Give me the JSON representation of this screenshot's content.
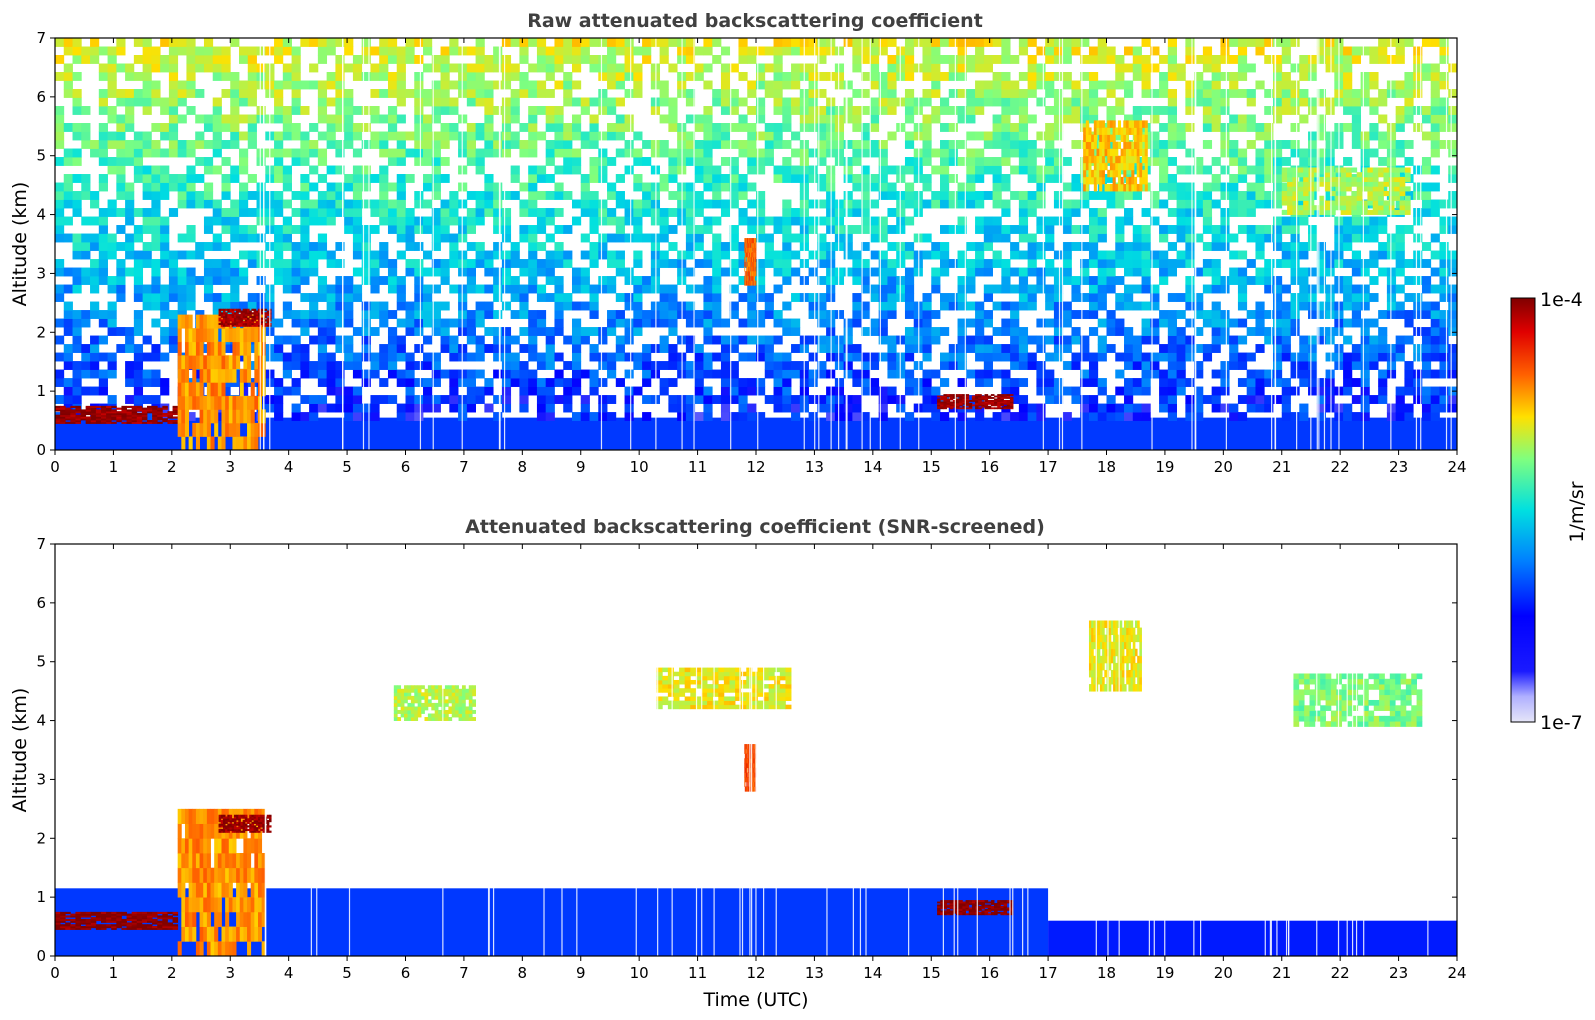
{
  "chart_data": [
    {
      "type": "heatmap",
      "title": "Raw attenuated backscattering coefficient",
      "xlabel": "",
      "ylabel": "Altitude (km)",
      "xlim": [
        0,
        24
      ],
      "ylim": [
        0,
        7
      ],
      "x_ticks": [
        "0",
        "1",
        "2",
        "3",
        "4",
        "5",
        "6",
        "7",
        "8",
        "9",
        "10",
        "11",
        "12",
        "13",
        "14",
        "15",
        "16",
        "17",
        "18",
        "19",
        "20",
        "21",
        "22",
        "23",
        "24"
      ],
      "y_ticks": [
        "0",
        "1",
        "2",
        "3",
        "4",
        "5",
        "6",
        "7"
      ],
      "features": [
        {
          "kind": "boundary_layer",
          "x_start": 0,
          "x_end": 24,
          "top_km": 0.55,
          "level": 0.18
        },
        {
          "kind": "noise",
          "x_start": 0,
          "x_end": 24,
          "alt_start_km": 0.5,
          "alt_end_km": 7,
          "level_low": 0.15,
          "level_high": 0.6
        },
        {
          "kind": "cloud",
          "x_start": 0.0,
          "x_end": 2.1,
          "alt_start_km": 0.45,
          "alt_end_km": 0.75,
          "level": 0.97
        },
        {
          "kind": "cloud",
          "x_start": 2.1,
          "x_end": 3.6,
          "alt_start_km": 0.0,
          "alt_end_km": 2.3,
          "level": 0.7
        },
        {
          "kind": "cloud",
          "x_start": 2.8,
          "x_end": 3.7,
          "alt_start_km": 2.1,
          "alt_end_km": 2.4,
          "level": 0.95
        },
        {
          "kind": "cloud",
          "x_start": 15.1,
          "x_end": 16.4,
          "alt_start_km": 0.7,
          "alt_end_km": 0.95,
          "level": 0.97
        },
        {
          "kind": "cloud",
          "x_start": 11.8,
          "x_end": 12.0,
          "alt_start_km": 2.8,
          "alt_end_km": 3.6,
          "level": 0.75
        },
        {
          "kind": "cloud",
          "x_start": 17.6,
          "x_end": 18.7,
          "alt_start_km": 4.4,
          "alt_end_km": 5.6,
          "level": 0.65
        },
        {
          "kind": "cloud",
          "x_start": 21.0,
          "x_end": 23.2,
          "alt_start_km": 4.0,
          "alt_end_km": 4.8,
          "level": 0.55
        }
      ]
    },
    {
      "type": "heatmap",
      "title": "Attenuated backscattering coefficient (SNR-screened)",
      "xlabel": "Time (UTC)",
      "ylabel": "Altitude (km)",
      "xlim": [
        0,
        24
      ],
      "ylim": [
        0,
        7
      ],
      "x_ticks": [
        "0",
        "1",
        "2",
        "3",
        "4",
        "5",
        "6",
        "7",
        "8",
        "9",
        "10",
        "11",
        "12",
        "13",
        "14",
        "15",
        "16",
        "17",
        "18",
        "19",
        "20",
        "21",
        "22",
        "23",
        "24"
      ],
      "y_ticks": [
        "0",
        "1",
        "2",
        "3",
        "4",
        "5",
        "6",
        "7"
      ],
      "features": [
        {
          "kind": "boundary_layer",
          "x_start": 0,
          "x_end": 17,
          "top_km": 1.15,
          "level": 0.18
        },
        {
          "kind": "boundary_layer",
          "x_start": 17,
          "x_end": 24,
          "top_km": 0.6,
          "level": 0.15
        },
        {
          "kind": "cloud",
          "x_start": 0.0,
          "x_end": 2.1,
          "alt_start_km": 0.45,
          "alt_end_km": 0.75,
          "level": 0.99
        },
        {
          "kind": "cloud",
          "x_start": 2.1,
          "x_end": 3.6,
          "alt_start_km": 0.0,
          "alt_end_km": 2.5,
          "level": 0.7
        },
        {
          "kind": "cloud",
          "x_start": 2.8,
          "x_end": 3.7,
          "alt_start_km": 2.1,
          "alt_end_km": 2.4,
          "level": 0.97
        },
        {
          "kind": "cloud",
          "x_start": 15.1,
          "x_end": 16.4,
          "alt_start_km": 0.7,
          "alt_end_km": 0.95,
          "level": 0.99
        },
        {
          "kind": "cloud",
          "x_start": 11.8,
          "x_end": 12.0,
          "alt_start_km": 2.8,
          "alt_end_km": 3.6,
          "level": 0.78
        },
        {
          "kind": "cloud",
          "x_start": 17.7,
          "x_end": 18.6,
          "alt_start_km": 4.5,
          "alt_end_km": 5.7,
          "level": 0.6
        },
        {
          "kind": "cloud",
          "x_start": 5.8,
          "x_end": 7.2,
          "alt_start_km": 4.0,
          "alt_end_km": 4.6,
          "level": 0.55
        },
        {
          "kind": "cloud",
          "x_start": 10.3,
          "x_end": 12.6,
          "alt_start_km": 4.2,
          "alt_end_km": 4.9,
          "level": 0.6
        },
        {
          "kind": "cloud",
          "x_start": 21.2,
          "x_end": 23.4,
          "alt_start_km": 3.9,
          "alt_end_km": 4.8,
          "level": 0.5
        }
      ]
    }
  ],
  "colorbar": {
    "label": "1/m/sr",
    "max_label": "1e-4",
    "min_label": "1e-7",
    "scale": "log",
    "range": [
      1e-07,
      0.0001
    ],
    "colormap": [
      "#e6e6f8",
      "#0000ff",
      "#0080ff",
      "#00e0e0",
      "#7fff7f",
      "#ffe000",
      "#ff6000",
      "#e00000",
      "#800000"
    ]
  }
}
